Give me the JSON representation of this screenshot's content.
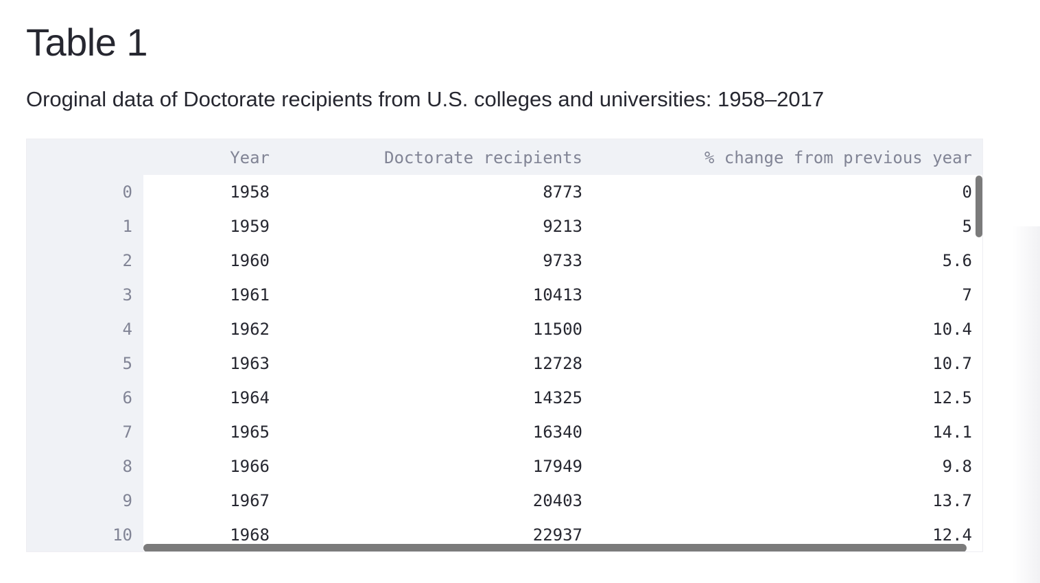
{
  "heading": {
    "title": "Table 1",
    "subtitle": "Oroginal data of Doctorate recipients from U.S. colleges and universities: 1958–2017"
  },
  "table": {
    "columns": {
      "year": "Year",
      "doctorates": "Doctorate recipients",
      "pct_change": "% change from previous year"
    },
    "rows": [
      {
        "index": "0",
        "year": "1958",
        "doctorates": "8773",
        "pct_change": "0"
      },
      {
        "index": "1",
        "year": "1959",
        "doctorates": "9213",
        "pct_change": "5"
      },
      {
        "index": "2",
        "year": "1960",
        "doctorates": "9733",
        "pct_change": "5.6"
      },
      {
        "index": "3",
        "year": "1961",
        "doctorates": "10413",
        "pct_change": "7"
      },
      {
        "index": "4",
        "year": "1962",
        "doctorates": "11500",
        "pct_change": "10.4"
      },
      {
        "index": "5",
        "year": "1963",
        "doctorates": "12728",
        "pct_change": "10.7"
      },
      {
        "index": "6",
        "year": "1964",
        "doctorates": "14325",
        "pct_change": "12.5"
      },
      {
        "index": "7",
        "year": "1965",
        "doctorates": "16340",
        "pct_change": "14.1"
      },
      {
        "index": "8",
        "year": "1966",
        "doctorates": "17949",
        "pct_change": "9.8"
      },
      {
        "index": "9",
        "year": "1967",
        "doctorates": "20403",
        "pct_change": "13.7"
      },
      {
        "index": "10",
        "year": "1968",
        "doctorates": "22937",
        "pct_change": "12.4"
      }
    ]
  },
  "colors": {
    "header_bg": "#f0f2f6",
    "muted_text": "#818495",
    "body_text": "#262730",
    "scrollbar": "#7b7b7b"
  }
}
